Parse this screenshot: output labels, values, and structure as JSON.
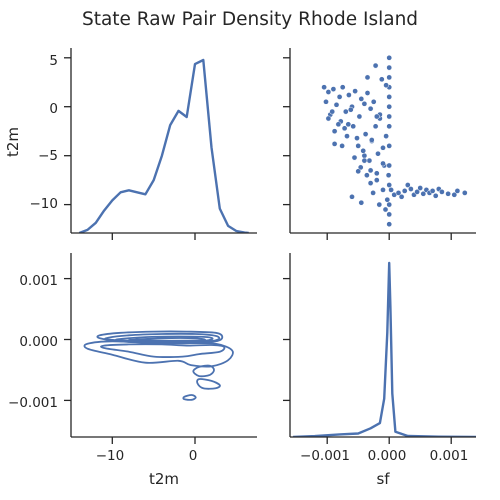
{
  "chart_data": {
    "type": "pairplot",
    "title": "State Raw Pair Density Rhode Island",
    "variables": [
      "t2m",
      "sf"
    ],
    "line_color": "#4c72b0",
    "xlabels": [
      "t2m",
      "sf"
    ],
    "ylabels": [
      "t2m",
      ""
    ],
    "t2m_ticks": [
      "−10",
      "0"
    ],
    "t2m_yticks": [
      "5",
      "0",
      "−5",
      "−10"
    ],
    "sf_ticks": [
      "−0.001",
      "0.000",
      "0.001"
    ],
    "sf_yticks": [
      "0.001",
      "0.000",
      "−0.001"
    ],
    "t2m_range": [
      -15,
      7.5
    ],
    "t2m_yrange": [
      -12.9,
      6
    ],
    "sf_range": [
      -0.0016,
      0.0014
    ],
    "sf_yrange": [
      -0.0016,
      0.00142
    ],
    "kde_t2m": {
      "x": [
        -14,
        -13,
        -12,
        -11,
        -10,
        -9,
        -8,
        -7,
        -6,
        -5,
        -4,
        -3,
        -2,
        -1,
        0,
        1,
        2,
        3,
        4,
        5,
        6,
        6.5
      ],
      "density": [
        0.0,
        0.015,
        0.05,
        0.11,
        0.16,
        0.2,
        0.21,
        0.2,
        0.19,
        0.26,
        0.38,
        0.53,
        0.6,
        0.57,
        0.83,
        0.85,
        0.42,
        0.12,
        0.035,
        0.01,
        0.002,
        0.0
      ]
    },
    "kde_sf": {
      "x": [
        -0.00155,
        -0.0012,
        -0.0008,
        -0.0005,
        -0.0003,
        -0.00015,
        -8e-05,
        -3e-05,
        0.0,
        2e-05,
        5e-05,
        0.0001,
        0.0003,
        0.0008,
        0.00145
      ],
      "density": [
        0.0,
        0.005,
        0.015,
        0.02,
        0.05,
        0.08,
        0.22,
        0.6,
        1.0,
        0.75,
        0.25,
        0.03,
        0.006,
        0.002,
        0.0
      ]
    },
    "scatter_sf_vs_t2m": {
      "x_sf": [
        -0.00105,
        -0.00102,
        -0.00098,
        -0.00095,
        -0.0009,
        -0.00088,
        -0.00085,
        -0.0008,
        -0.00078,
        -0.00075,
        -0.0007,
        -0.00068,
        -0.00065,
        -0.0006,
        -0.00058,
        -0.00055,
        -0.0005,
        -0.00048,
        -0.00045,
        -0.0004,
        -0.00038,
        -0.00035,
        -0.0003,
        -0.00028,
        -0.00025,
        -0.0002,
        -0.00018,
        -0.00015,
        -0.0001,
        -8e-05,
        -5e-05,
        -3e-05,
        -1e-05,
        0.0,
        0.0,
        0.0,
        0.0,
        0.0,
        0.0,
        0.0,
        0.0,
        0.0,
        0.0,
        0.0,
        0.0,
        0.0,
        0.0,
        3e-05,
        8e-05,
        0.00015,
        0.0002,
        0.00025,
        0.0003,
        0.00035,
        0.0004,
        0.00045,
        0.0005,
        0.00055,
        0.0006,
        0.00065,
        0.0007,
        0.00075,
        0.0008,
        0.00085,
        0.00095,
        0.00105,
        0.0011,
        0.00122,
        -0.00092,
        -0.00082,
        -0.00072,
        -0.00062,
        -0.00052,
        -0.00042,
        -0.00032,
        -0.00022,
        -0.0001,
        -0.00098,
        -0.00088,
        -0.00076,
        -0.00066,
        -0.00056,
        -0.00046,
        -0.00036,
        -0.00026,
        -0.00016,
        -6e-05,
        -0.0006,
        -0.00045,
        -0.0003,
        -0.0002,
        -0.0001,
        -0.0005,
        -0.0004,
        -0.00028,
        -0.00015,
        -5e-05,
        -0.00035,
        -0.00022,
        -0.00012,
        -0.0004,
        -0.0003,
        -0.0002
      ],
      "y_t2m": [
        2.0,
        0.5,
        1.5,
        -0.8,
        1.8,
        -2.5,
        0.2,
        1.0,
        -1.5,
        2.0,
        -0.5,
        -3.0,
        1.2,
        0.0,
        -2.0,
        1.6,
        -4.0,
        -1.0,
        0.8,
        -5.0,
        -2.8,
        1.4,
        -6.5,
        -3.5,
        0.5,
        -7.5,
        -4.8,
        -1.2,
        -8.5,
        -6.0,
        -3.0,
        -9.5,
        -7.0,
        5.0,
        4.0,
        3.0,
        2.0,
        1.0,
        0.0,
        -1.0,
        -2.0,
        -4.0,
        -6.0,
        -8.0,
        -10.0,
        -11.0,
        -12.0,
        -8.5,
        -9.0,
        -8.8,
        -9.2,
        -8.6,
        -8.0,
        -8.4,
        -9.0,
        -8.7,
        -8.3,
        -8.9,
        -8.5,
        -8.8,
        -8.6,
        -9.1,
        -8.4,
        -8.7,
        -8.9,
        -9.0,
        -8.6,
        -8.8,
        -0.5,
        -1.8,
        -2.2,
        -0.3,
        -3.2,
        -4.5,
        -5.5,
        -2.0,
        -4.2,
        -1.2,
        -3.8,
        -4.0,
        -1.8,
        -5.2,
        -6.2,
        -7.0,
        -8.8,
        -10.0,
        -10.5,
        -9.2,
        -9.8,
        -7.8,
        -6.8,
        -5.8,
        -6.6,
        -5.5,
        -3.4,
        -0.8,
        2.2,
        3.0,
        4.2,
        2.8,
        0.3,
        -0.2,
        -1.0
      ]
    },
    "contours_t2m_vs_sf": [
      [
        [
          -11.5,
          7e-05
        ],
        [
          -9,
          0.00011
        ],
        [
          -5,
          0.00013
        ],
        [
          -1,
          0.00013
        ],
        [
          2.5,
          0.00011
        ],
        [
          3.3,
          4e-05
        ],
        [
          2.5,
          -3e-05
        ],
        [
          -1,
          -6e-05
        ],
        [
          -5,
          -5e-05
        ],
        [
          -9,
          -3e-05
        ],
        [
          -11.5,
          2e-05
        ]
      ],
      [
        [
          -10.5,
          3e-05
        ],
        [
          -8,
          7e-05
        ],
        [
          -4,
          9e-05
        ],
        [
          0,
          9e-05
        ],
        [
          2.5,
          6e-05
        ],
        [
          2.8,
          0.0
        ],
        [
          1,
          -4e-05
        ],
        [
          -3,
          -5e-05
        ],
        [
          -7,
          -3e-05
        ],
        [
          -10.5,
          0.0
        ]
      ],
      [
        [
          -9.5,
          0.0
        ],
        [
          -6,
          4e-05
        ],
        [
          -2,
          5e-05
        ],
        [
          1.5,
          4e-05
        ],
        [
          2,
          0.0
        ],
        [
          0,
          -3e-05
        ],
        [
          -4,
          -3e-05
        ],
        [
          -8,
          -2e-05
        ]
      ],
      [
        [
          -8,
          -1e-05
        ],
        [
          -4,
          2e-05
        ],
        [
          0,
          2e-05
        ],
        [
          1.2,
          -1e-05
        ],
        [
          -1,
          -2e-05
        ],
        [
          -5,
          -2e-05
        ]
      ],
      [
        [
          -11,
          -0.0001
        ],
        [
          -8,
          -8e-05
        ],
        [
          -4,
          -8e-05
        ],
        [
          -1,
          -0.0001
        ],
        [
          2,
          -9e-05
        ],
        [
          3.5,
          -0.00012
        ],
        [
          3,
          -0.0002
        ],
        [
          0.5,
          -0.00024
        ],
        [
          -1.5,
          -0.00028
        ],
        [
          -5,
          -0.00028
        ],
        [
          -8,
          -0.0002
        ],
        [
          -11,
          -0.00014
        ]
      ],
      [
        [
          -13,
          -7e-05
        ],
        [
          -10,
          -3e-05
        ],
        [
          -5,
          -6e-05
        ],
        [
          -1,
          -6e-05
        ],
        [
          2.5,
          -7e-05
        ],
        [
          4.5,
          -0.00018
        ],
        [
          4,
          -0.00034
        ],
        [
          2,
          -0.00044
        ],
        [
          -0.5,
          -0.00042
        ],
        [
          -2,
          -0.00035
        ],
        [
          -6,
          -0.00038
        ],
        [
          -10,
          -0.00025
        ],
        [
          -13,
          -0.00015
        ]
      ],
      [
        [
          0.5,
          -0.00045
        ],
        [
          1.8,
          -0.00043
        ],
        [
          2.3,
          -0.0005
        ],
        [
          1.8,
          -0.00058
        ],
        [
          0.5,
          -0.0006
        ],
        [
          -0.2,
          -0.00052
        ]
      ],
      [
        [
          0.5,
          -0.00065
        ],
        [
          2,
          -0.00068
        ],
        [
          3,
          -0.00075
        ],
        [
          2.5,
          -0.0008
        ],
        [
          1,
          -0.0008
        ],
        [
          0.3,
          -0.00072
        ]
      ],
      [
        [
          -1.3,
          -0.00094
        ],
        [
          -0.4,
          -0.00091
        ],
        [
          0.1,
          -0.00095
        ],
        [
          -0.4,
          -0.00099
        ],
        [
          -1.3,
          -0.00098
        ]
      ]
    ]
  }
}
